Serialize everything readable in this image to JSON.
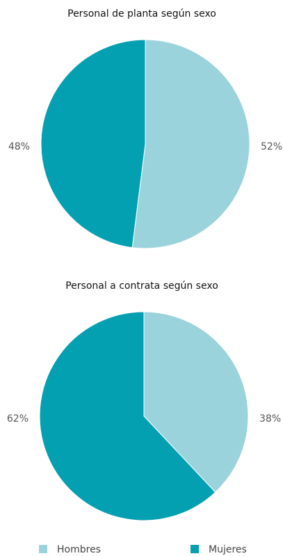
{
  "chart_data": [
    {
      "type": "pie",
      "title": "Personal de planta según sexo",
      "categories": [
        "Hombres",
        "Mujeres"
      ],
      "values": [
        52,
        48
      ],
      "value_labels": [
        "52%",
        "48%"
      ],
      "colors": [
        "#9bd3dc",
        "#02a0b1"
      ]
    },
    {
      "type": "pie",
      "title": "Personal a contrata según sexo",
      "categories": [
        "Hombres",
        "Mujeres"
      ],
      "values": [
        38,
        62
      ],
      "value_labels": [
        "38%",
        "62%"
      ],
      "colors": [
        "#9bd3dc",
        "#02a0b1"
      ]
    }
  ]
}
